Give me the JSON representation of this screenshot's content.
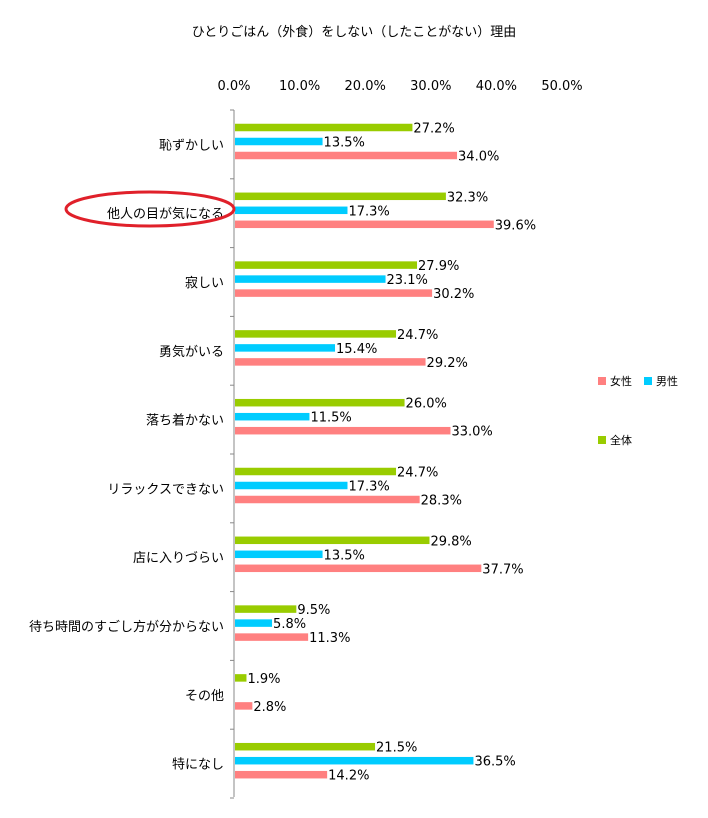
{
  "chart_data": {
    "type": "bar",
    "orientation": "horizontal",
    "title": "ひとりごはん（外食）をしない（したことがない）理由",
    "xlim": [
      0,
      50
    ],
    "x_ticks": [
      "0.0%",
      "10.0%",
      "20.0%",
      "30.0%",
      "40.0%",
      "50.0%"
    ],
    "x_axis_position": "top",
    "grid": false,
    "legend_position": "right",
    "highlighted_category": "他人の目が気になる",
    "highlight_color": "#e0202a",
    "categories": [
      "恥ずかしい",
      "他人の目が気になる",
      "寂しい",
      "勇気がいる",
      "落ち着かない",
      "リラックスできない",
      "店に入りづらい",
      "待ち時間のすごし方が分からない",
      "その他",
      "特になし"
    ],
    "series": [
      {
        "name": "全体",
        "color": "#99cc00",
        "values": [
          27.2,
          32.3,
          27.9,
          24.7,
          26.0,
          24.7,
          29.8,
          9.5,
          1.9,
          21.5
        ],
        "labels": [
          "27.2%",
          "32.3%",
          "27.9%",
          "24.7%",
          "26.0%",
          "24.7%",
          "29.8%",
          "9.5%",
          "1.9%",
          "21.5%"
        ]
      },
      {
        "name": "男性",
        "color": "#00ccff",
        "values": [
          13.5,
          17.3,
          23.1,
          15.4,
          11.5,
          17.3,
          13.5,
          5.8,
          null,
          36.5
        ],
        "labels": [
          "13.5%",
          "17.3%",
          "23.1%",
          "15.4%",
          "11.5%",
          "17.3%",
          "13.5%",
          "5.8%",
          "",
          "36.5%"
        ]
      },
      {
        "name": "女性",
        "color": "#ff8080",
        "values": [
          34.0,
          39.6,
          30.2,
          29.2,
          33.0,
          28.3,
          37.7,
          11.3,
          2.8,
          14.2
        ],
        "labels": [
          "34.0%",
          "39.6%",
          "30.2%",
          "29.2%",
          "33.0%",
          "28.3%",
          "37.7%",
          "11.3%",
          "2.8%",
          "14.2%"
        ]
      }
    ],
    "legend": [
      {
        "name": "女性",
        "color": "#ff8080"
      },
      {
        "name": "男性",
        "color": "#00ccff"
      },
      {
        "name": "全体",
        "color": "#99cc00"
      }
    ]
  }
}
